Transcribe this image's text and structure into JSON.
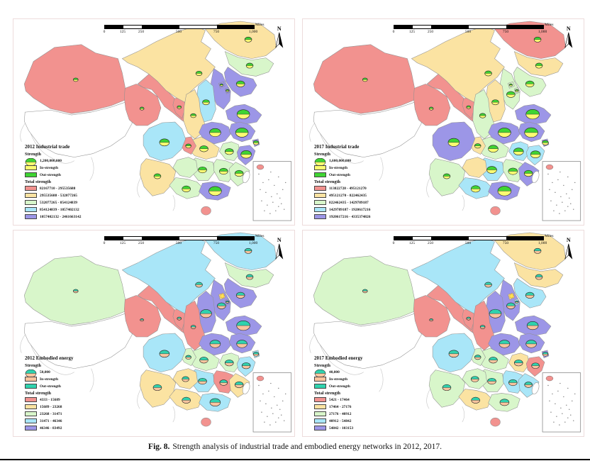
{
  "figure": {
    "caption_label": "Fig. 8.",
    "caption_text": "Strength analysis of industrial trade and embodied energy networks in 2012, 2017."
  },
  "shared": {
    "north_label": "N",
    "scalebar": {
      "ticks": [
        "0",
        "125",
        "250",
        "500",
        "750",
        "1,000"
      ],
      "unit": "Miles"
    },
    "strength_label": "Strength",
    "in_label": "In-strength",
    "out_label": "Out-strength",
    "total_label": "Total strength"
  },
  "palette": {
    "c0": "#FFFFFF",
    "c1": "#F2928F",
    "c2": "#FBE3A2",
    "c3": "#D8F6CA",
    "c4": "#A9E6F8",
    "c5": "#9C96E7",
    "border": "#909090"
  },
  "maps": [
    {
      "id": "trade2012",
      "title": "2012 Industrial trade",
      "symbol_value": "1,200,000,000",
      "in_color": "#FBFB72",
      "out_color": "#3FD433",
      "classes": [
        "82167710 - 295535688",
        "295535688 - 532077265",
        "532077265 - 854124839",
        "854124839 - 1057402132",
        "1057402132 - 2461663142"
      ],
      "star_on_beijing": false,
      "province_classes": {
        "xinjiang": 1,
        "tibet": 0,
        "qinghai": 1,
        "gansu": 1,
        "ningxia": 1,
        "innermongolia": 2,
        "heilongjiang": 2,
        "jilin": 3,
        "liaoning": 5,
        "hebei": 5,
        "beijing": 5,
        "tianjin": 5,
        "shanxi": 4,
        "shaanxi": 2,
        "shandong": 5,
        "henan": 5,
        "jiangsu": 5,
        "shanghai": 5,
        "anhui": 3,
        "zhejiang": 5,
        "hubei": 2,
        "chongqing": 1,
        "sichuan": 4,
        "hunan": 3,
        "jiangxi": 3,
        "fujian": 3,
        "guizhou": 3,
        "yunnan": 2,
        "guangxi": 3,
        "guangdong": 5,
        "hainan": 1,
        "taiwan": 0
      },
      "symbols": [
        [
          "xinjiang",
          3.5
        ],
        [
          "heilongjiang",
          5
        ],
        [
          "jilin",
          5
        ],
        [
          "liaoning",
          6
        ],
        [
          "innermongolia",
          4.5
        ],
        [
          "beijing",
          2.3
        ],
        [
          "tianjin",
          2.3
        ],
        [
          "shanxi",
          5
        ],
        [
          "shaanxi",
          4
        ],
        [
          "ningxia",
          3
        ],
        [
          "qinghai",
          3
        ],
        [
          "shandong",
          9
        ],
        [
          "henan",
          8
        ],
        [
          "jiangsu",
          9
        ],
        [
          "shanghai",
          4
        ],
        [
          "anhui",
          6
        ],
        [
          "zhejiang",
          7.5
        ],
        [
          "hubei",
          6
        ],
        [
          "chongqing",
          4
        ],
        [
          "sichuan",
          7
        ],
        [
          "hunan",
          6
        ],
        [
          "jiangxi",
          6
        ],
        [
          "fujian",
          6
        ],
        [
          "yunnan",
          5
        ],
        [
          "guangxi",
          6
        ],
        [
          "guangdong",
          9
        ]
      ]
    },
    {
      "id": "trade2017",
      "title": "2017 Industrial trade",
      "symbol_value": "1,600,000,000",
      "in_color": "#FBFB72",
      "out_color": "#3FD433",
      "classes": [
        "113822728 - 495121270",
        "495121270 - 822462435",
        "822462435 - 1429789187",
        "1429789187 - 1920617216",
        "1920617216 - 4335374826"
      ],
      "star_on_beijing": false,
      "province_classes": {
        "xinjiang": 1,
        "tibet": 0,
        "qinghai": 1,
        "gansu": 1,
        "ningxia": 1,
        "innermongolia": 2,
        "heilongjiang": 1,
        "jilin": 2,
        "liaoning": 3,
        "hebei": 3,
        "beijing": 3,
        "tianjin": 3,
        "shanxi": 2,
        "shaanxi": 3,
        "shandong": 5,
        "henan": 5,
        "jiangsu": 5,
        "shanghai": 5,
        "anhui": 4,
        "zhejiang": 4,
        "hubei": 3,
        "chongqing": 2,
        "sichuan": 5,
        "hunan": 4,
        "jiangxi": 3,
        "fujian": 5,
        "guizhou": 2,
        "yunnan": 3,
        "guangxi": 4,
        "guangdong": 5,
        "hainan": 1,
        "taiwan": 0
      },
      "symbols": [
        [
          "xinjiang",
          3.5
        ],
        [
          "heilongjiang",
          5
        ],
        [
          "jilin",
          5
        ],
        [
          "liaoning",
          6
        ],
        [
          "innermongolia",
          5
        ],
        [
          "hebei",
          6
        ],
        [
          "beijing",
          2.3
        ],
        [
          "tianjin",
          2.3
        ],
        [
          "shanxi",
          5
        ],
        [
          "shaanxi",
          4.5
        ],
        [
          "ningxia",
          3
        ],
        [
          "qinghai",
          3
        ],
        [
          "shandong",
          9.5
        ],
        [
          "henan",
          9
        ],
        [
          "jiangsu",
          9.5
        ],
        [
          "shanghai",
          4.5
        ],
        [
          "anhui",
          7
        ],
        [
          "zhejiang",
          7
        ],
        [
          "hubei",
          7
        ],
        [
          "chongqing",
          4.5
        ],
        [
          "sichuan",
          8
        ],
        [
          "hunan",
          7
        ],
        [
          "jiangxi",
          6.5
        ],
        [
          "fujian",
          6
        ],
        [
          "yunnan",
          5
        ],
        [
          "guangxi",
          6.5
        ],
        [
          "guangdong",
          9.5
        ]
      ]
    },
    {
      "id": "energy2012",
      "title": "2012 Embodied energy",
      "symbol_value": "50,000",
      "in_color": "#F9C49E",
      "out_color": "#30D2AE",
      "classes": [
        "4333 - 15689",
        "15689 - 23268",
        "23268 - 31471",
        "31471 - 46346",
        "46346 - 83492"
      ],
      "star_on_beijing": true,
      "province_classes": {
        "xinjiang": 3,
        "tibet": 0,
        "qinghai": 1,
        "gansu": 1,
        "ningxia": 1,
        "innermongolia": 4,
        "heilongjiang": 4,
        "jilin": 3,
        "liaoning": 5,
        "hebei": 5,
        "beijing": 2,
        "tianjin": 5,
        "shanxi": 5,
        "shaanxi": 1,
        "shandong": 5,
        "henan": 5,
        "jiangsu": 5,
        "shanghai": 4,
        "anhui": 3,
        "zhejiang": 4,
        "hubei": 3,
        "chongqing": 3,
        "sichuan": 4,
        "hunan": 4,
        "jiangxi": 1,
        "fujian": 2,
        "guizhou": 2,
        "yunnan": 2,
        "guangxi": 2,
        "guangdong": 4,
        "hainan": 1,
        "taiwan": 0
      },
      "symbols": [
        [
          "xinjiang",
          3.5
        ],
        [
          "heilongjiang",
          5
        ],
        [
          "jilin",
          5
        ],
        [
          "liaoning",
          6
        ],
        [
          "innermongolia",
          5
        ],
        [
          "hebei",
          6
        ],
        [
          "tianjin",
          2.3
        ],
        [
          "shanxi",
          8
        ],
        [
          "shaanxi",
          3.5
        ],
        [
          "ningxia",
          3
        ],
        [
          "qinghai",
          2.5
        ],
        [
          "shandong",
          9.5
        ],
        [
          "henan",
          7.5
        ],
        [
          "jiangsu",
          7.5
        ],
        [
          "shanghai",
          4
        ],
        [
          "anhui",
          6
        ],
        [
          "zhejiang",
          6
        ],
        [
          "hubei",
          6
        ],
        [
          "chongqing",
          4
        ],
        [
          "sichuan",
          7
        ],
        [
          "hunan",
          6
        ],
        [
          "jiangxi",
          5.5
        ],
        [
          "fujian",
          6
        ],
        [
          "guizhou",
          5
        ],
        [
          "yunnan",
          6
        ],
        [
          "guangxi",
          6
        ],
        [
          "guangdong",
          7.5
        ]
      ]
    },
    {
      "id": "energy2017",
      "title": "2017 Embodied energy",
      "symbol_value": "40,000",
      "in_color": "#F9C49E",
      "out_color": "#30D2AE",
      "classes": [
        "5421 - 17464",
        "17464 - 27176",
        "27176 - 40912",
        "40912 - 54842",
        "54842 - 103153"
      ],
      "star_on_beijing": true,
      "province_classes": {
        "xinjiang": 3,
        "tibet": 0,
        "qinghai": 1,
        "gansu": 1,
        "ningxia": 1,
        "innermongolia": 4,
        "heilongjiang": 2,
        "jilin": 2,
        "liaoning": 4,
        "hebei": 5,
        "beijing": 2,
        "tianjin": 4,
        "shanxi": 5,
        "shaanxi": 1,
        "shandong": 5,
        "henan": 5,
        "jiangsu": 5,
        "shanghai": 5,
        "anhui": 2,
        "zhejiang": 1,
        "hubei": 3,
        "chongqing": 3,
        "sichuan": 4,
        "hunan": 3,
        "jiangxi": 4,
        "fujian": 4,
        "guizhou": 3,
        "yunnan": 3,
        "guangxi": 2,
        "guangdong": 3,
        "hainan": 1,
        "taiwan": 0
      },
      "symbols": [
        [
          "xinjiang",
          3.5
        ],
        [
          "heilongjiang",
          5
        ],
        [
          "jilin",
          5
        ],
        [
          "liaoning",
          6
        ],
        [
          "innermongolia",
          5
        ],
        [
          "hebei",
          6
        ],
        [
          "tianjin",
          2.3
        ],
        [
          "shanxi",
          8.5
        ],
        [
          "shaanxi",
          3.5
        ],
        [
          "ningxia",
          3
        ],
        [
          "qinghai",
          2.5
        ],
        [
          "shandong",
          8
        ],
        [
          "henan",
          7.5
        ],
        [
          "jiangsu",
          7.5
        ],
        [
          "shanghai",
          4
        ],
        [
          "anhui",
          6
        ],
        [
          "zhejiang",
          5.5
        ],
        [
          "hubei",
          6
        ],
        [
          "chongqing",
          4.5
        ],
        [
          "sichuan",
          7
        ],
        [
          "hunan",
          6
        ],
        [
          "jiangxi",
          6
        ],
        [
          "fujian",
          5.5
        ],
        [
          "guizhou",
          5.5
        ],
        [
          "yunnan",
          6
        ],
        [
          "guangxi",
          6
        ],
        [
          "guangdong",
          6.5
        ]
      ]
    }
  ]
}
